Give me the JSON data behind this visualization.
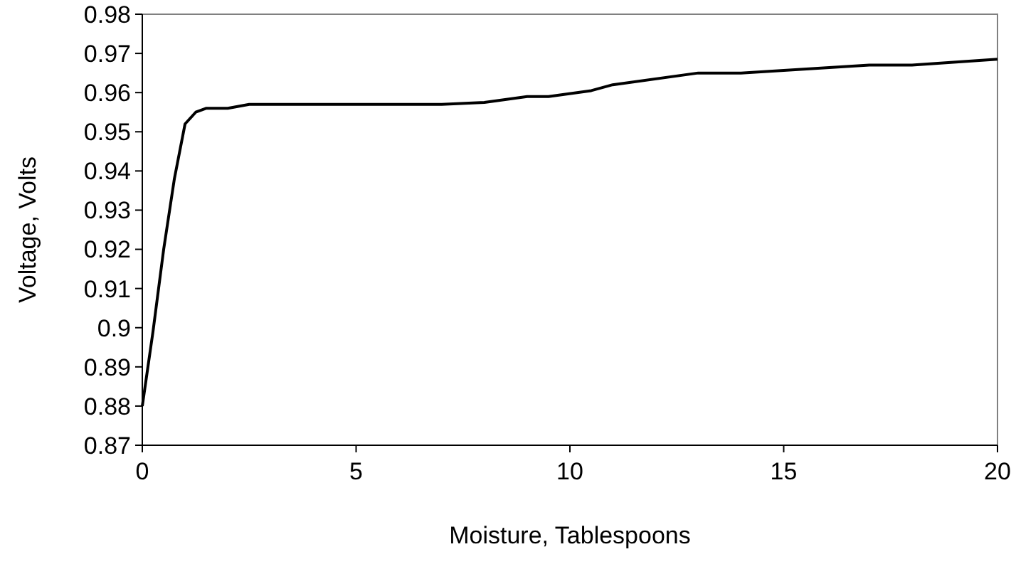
{
  "chart_data": {
    "type": "line",
    "xlabel": "Moisture, Tablespoons",
    "ylabel": "Voltage, Volts",
    "series": [
      {
        "color": "#000000",
        "x": [
          0,
          0.25,
          0.5,
          0.75,
          1,
          1.25,
          1.5,
          2,
          2.5,
          7,
          8,
          9,
          9.5,
          10.5,
          11,
          13,
          14,
          17,
          18,
          20
        ],
        "values": [
          0.88,
          0.899,
          0.92,
          0.938,
          0.952,
          0.955,
          0.956,
          0.956,
          0.957,
          0.957,
          0.9575,
          0.959,
          0.959,
          0.9605,
          0.962,
          0.965,
          0.965,
          0.967,
          0.967,
          0.9685
        ]
      }
    ],
    "xlim": [
      0,
      20
    ],
    "xticks": [
      0,
      5,
      10,
      15,
      20
    ],
    "ylim": [
      0.87,
      0.98
    ],
    "yticks": [
      0.87,
      0.88,
      0.89,
      0.9,
      0.91,
      0.92,
      0.93,
      0.94,
      0.95,
      0.96,
      0.97,
      0.98
    ],
    "grid": false,
    "marker": "none",
    "line_style": "solid"
  }
}
